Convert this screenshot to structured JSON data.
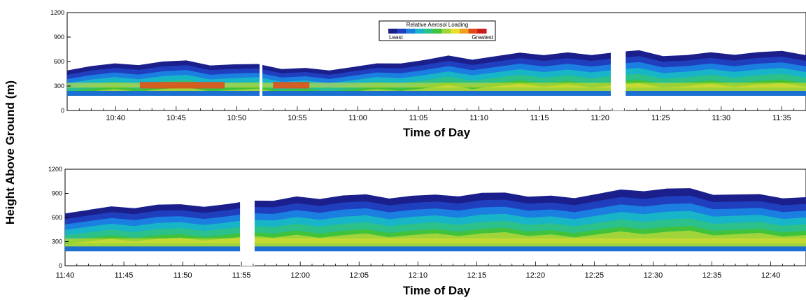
{
  "chart_data": [
    {
      "type": "heatmap",
      "title": "",
      "xlabel": "Time of Day",
      "ylabel": "Height Above Ground (m)",
      "ylim": [
        0,
        1200
      ],
      "yticks": [
        "0",
        "300",
        "600",
        "900",
        "1200"
      ],
      "xticks": [
        "10:40",
        "10:45",
        "10:50",
        "10:55",
        "11:00",
        "11:05",
        "11:10",
        "11:15",
        "11:20",
        "11:25",
        "11:30",
        "11:35"
      ],
      "xrange": [
        "10:36",
        "11:37"
      ],
      "gaps": [
        [
          "10:52",
          "10:52"
        ],
        [
          "11:21",
          "11:22"
        ]
      ],
      "aerosol_top": [
        520,
        550,
        560,
        580,
        600,
        590,
        570,
        560,
        540,
        520,
        510,
        520,
        540,
        560,
        600,
        620,
        650,
        640,
        660,
        680,
        690,
        700,
        710,
        720,
        720,
        690,
        680,
        690,
        700,
        710,
        700,
        690
      ],
      "high_loading_band": [
        280,
        340
      ],
      "legend": {
        "title": "Relative Aerosol Loading",
        "low_label": "Least",
        "high_label": "Greatest",
        "position": "top-center"
      }
    },
    {
      "type": "heatmap",
      "title": "",
      "xlabel": "Time of Day",
      "ylabel": "Height Above Ground (m)",
      "ylim": [
        0,
        1200
      ],
      "yticks": [
        "0",
        "300",
        "600",
        "900",
        "1200"
      ],
      "xticks": [
        "11:40",
        "11:45",
        "11:50",
        "11:55",
        "12:00",
        "12:05",
        "12:10",
        "12:15",
        "12:20",
        "12:25",
        "12:30",
        "12:35",
        "12:40"
      ],
      "xrange": [
        "11:40",
        "12:43"
      ],
      "gaps": [
        [
          "11:55",
          "11:56"
        ]
      ],
      "aerosol_top": [
        680,
        700,
        720,
        740,
        760,
        740,
        750,
        760,
        780,
        820,
        850,
        860,
        880,
        870,
        860,
        870,
        860,
        880,
        900,
        880,
        870,
        860,
        870,
        900,
        930,
        950,
        960,
        940,
        900,
        880,
        860,
        850,
        840
      ],
      "high_loading_band": [
        280,
        340
      ]
    }
  ],
  "legend_colors": [
    "#1a1f8c",
    "#1f3fbf",
    "#1a7fe0",
    "#18b4c8",
    "#2cc08a",
    "#3fc23c",
    "#9fd43a",
    "#e6df2e",
    "#f0a020",
    "#e04a1a",
    "#cc1a1a"
  ]
}
